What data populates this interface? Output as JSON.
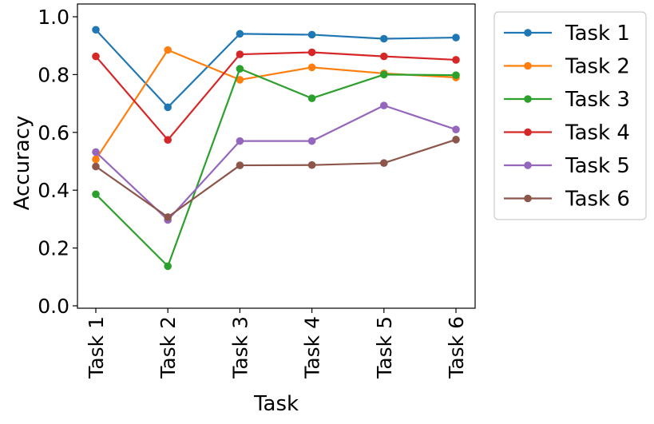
{
  "chart_data": {
    "type": "line",
    "title": "",
    "xlabel": "Task",
    "ylabel": "Accuracy",
    "categories": [
      "Task 1",
      "Task 2",
      "Task 3",
      "Task 4",
      "Task 5",
      "Task 6"
    ],
    "ylim": [
      0.0,
      1.0
    ],
    "yticks": [
      0.0,
      0.2,
      0.4,
      0.6,
      0.8,
      1.0
    ],
    "ytick_labels": [
      "0.0",
      "0.2",
      "0.4",
      "0.6",
      "0.8",
      "1.0"
    ],
    "grid": false,
    "legend_position": "outside-right",
    "series": [
      {
        "name": "Task 1",
        "color": "#1f77b4",
        "values": [
          0.955,
          0.687,
          0.941,
          0.938,
          0.924,
          0.928
        ]
      },
      {
        "name": "Task 2",
        "color": "#ff7f0e",
        "values": [
          0.507,
          0.885,
          0.782,
          0.825,
          0.804,
          0.79
        ]
      },
      {
        "name": "Task 3",
        "color": "#2ca02c",
        "values": [
          0.386,
          0.137,
          0.82,
          0.718,
          0.8,
          0.798
        ]
      },
      {
        "name": "Task 4",
        "color": "#d62728",
        "values": [
          0.863,
          0.574,
          0.87,
          0.877,
          0.863,
          0.851
        ]
      },
      {
        "name": "Task 5",
        "color": "#9467bd",
        "values": [
          0.532,
          0.297,
          0.57,
          0.57,
          0.693,
          0.61
        ]
      },
      {
        "name": "Task 6",
        "color": "#8c564b",
        "values": [
          0.482,
          0.307,
          0.486,
          0.487,
          0.494,
          0.575
        ]
      }
    ]
  }
}
